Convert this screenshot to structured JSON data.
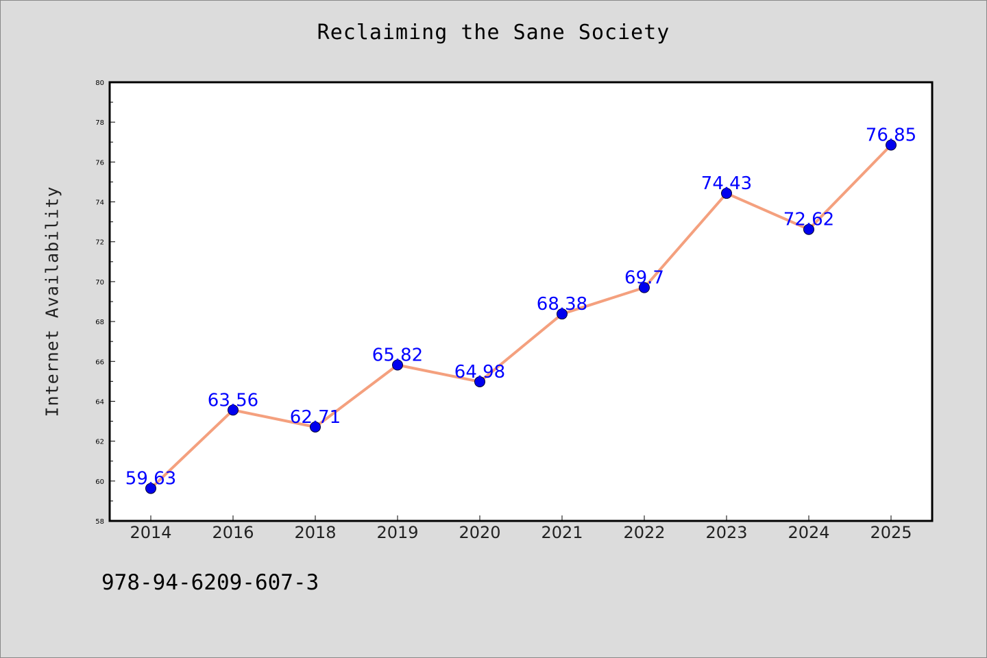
{
  "chart_data": {
    "type": "line",
    "title": "Reclaiming the Sane Society",
    "xlabel": "",
    "ylabel": "Internet Availability",
    "categories": [
      "2014",
      "2016",
      "2018",
      "2019",
      "2020",
      "2021",
      "2022",
      "2023",
      "2024",
      "2025"
    ],
    "values": [
      59.63,
      63.56,
      62.71,
      65.82,
      64.98,
      68.38,
      69.7,
      74.43,
      72.62,
      76.85
    ],
    "data_labels": [
      "59.63",
      "63.56",
      "62.71",
      "65.82",
      "64.98",
      "68.38",
      "69.7",
      "74.43",
      "72.62",
      "76.85"
    ],
    "ylim": [
      58,
      80
    ],
    "yticks": [
      58,
      60,
      62,
      64,
      66,
      68,
      70,
      72,
      74,
      76,
      78,
      80
    ],
    "grid": false,
    "line_color": "#f4a07e",
    "marker_color": "#0000ee",
    "label_color": "#0000ff"
  },
  "footer": {
    "isbn": "978-94-6209-607-3"
  }
}
